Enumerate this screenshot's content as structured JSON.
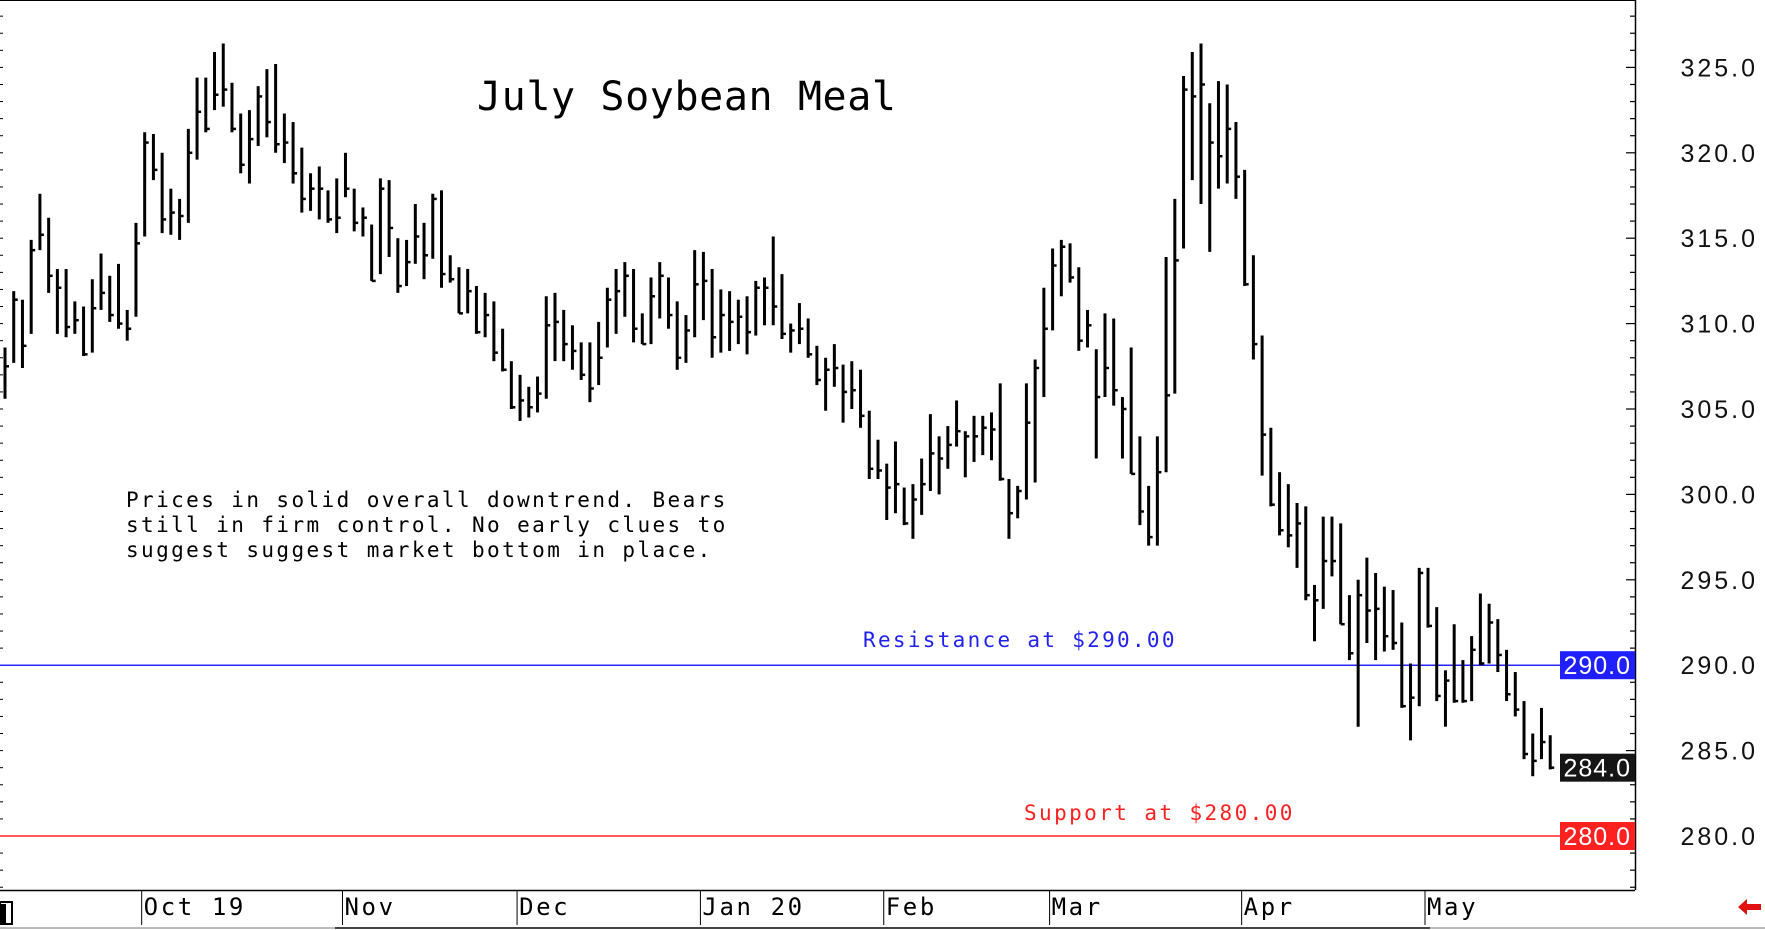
{
  "chart_data": {
    "type": "bar",
    "style": "high-low-close price bars",
    "title": "July Soybean Meal",
    "annotation": [
      "Prices in solid overall downtrend. Bears",
      "still in firm control. No early clues to",
      "suggest suggest market bottom in place."
    ],
    "y_axis": {
      "position": "right",
      "ylim": [
        276.8,
        329.0
      ],
      "ticks": [
        "325.0",
        "320.0",
        "315.0",
        "310.0",
        "305.0",
        "300.0",
        "295.0",
        "290.0",
        "285.0",
        "280.0"
      ],
      "tick_values": [
        325,
        320,
        315,
        310,
        305,
        300,
        295,
        290,
        285,
        280
      ]
    },
    "x_axis": {
      "months": [
        {
          "label": "Oct 19",
          "start_bar": 17
        },
        {
          "label": "Nov",
          "start_bar": 40
        },
        {
          "label": "Dec",
          "start_bar": 60
        },
        {
          "label": "Jan 20",
          "start_bar": 81
        },
        {
          "label": "Feb",
          "start_bar": 102
        },
        {
          "label": "Mar",
          "start_bar": 121
        },
        {
          "label": "Apr",
          "start_bar": 143
        },
        {
          "label": "May",
          "start_bar": 164
        }
      ]
    },
    "reference_lines": [
      {
        "label": "Resistance at $290.00",
        "value": 290,
        "badge": "290.0",
        "color": "#2424ff"
      },
      {
        "label": "Support at $280.00",
        "value": 280,
        "badge": "280.0",
        "color": "#ff2020"
      }
    ],
    "last_price": {
      "value": 284,
      "badge": "284.0",
      "color": "#111111"
    },
    "high": [
      308.6,
      311.9,
      311.4,
      314.9,
      317.6,
      316.2,
      313.2,
      313.2,
      311.3,
      311.0,
      312.6,
      314.1,
      312.8,
      313.5,
      310.8,
      315.9,
      321.2,
      321.1,
      320.0,
      317.9,
      317.3,
      321.4,
      324.4,
      324.4,
      325.9,
      326.4,
      324.1,
      322.3,
      322.5,
      323.9,
      324.9,
      325.2,
      322.3,
      321.8,
      320.3,
      318.8,
      319.2,
      317.8,
      318.5,
      320.0,
      317.9,
      316.8,
      315.8,
      318.5,
      318.4,
      315.0,
      314.9,
      317.0,
      315.9,
      317.6,
      317.8,
      314.0,
      313.3,
      313.2,
      312.2,
      311.8,
      311.3,
      309.7,
      307.8,
      307.0,
      306.3,
      306.9,
      311.6,
      311.8,
      310.8,
      309.9,
      308.9,
      308.9,
      310.1,
      312.1,
      313.2,
      313.6,
      313.2,
      310.6,
      312.7,
      313.6,
      312.7,
      311.3,
      310.5,
      314.3,
      314.2,
      313.2,
      312.0,
      311.9,
      311.4,
      311.6,
      312.5,
      312.7,
      315.1,
      312.9,
      310.0,
      311.2,
      310.3,
      308.7,
      308.0,
      308.8,
      307.6,
      307.8,
      307.3,
      304.9,
      303.2,
      301.8,
      303.1,
      300.4,
      300.6,
      302.1,
      304.7,
      303.4,
      304.0,
      305.5,
      303.7,
      304.6,
      304.6,
      304.8,
      306.5,
      300.9,
      300.5,
      306.5,
      307.9,
      312.1,
      314.4,
      314.9,
      314.7,
      313.3,
      310.8,
      308.5,
      310.6,
      310.3,
      305.7,
      308.6,
      303.4,
      300.5,
      303.4,
      313.9,
      317.3,
      324.5,
      325.9,
      326.4,
      322.9,
      324.2,
      324.0,
      321.8,
      319.0,
      314.0,
      309.3,
      303.9,
      301.3,
      300.6,
      299.5,
      299.3,
      294.7,
      298.7,
      298.7,
      298.3,
      294.1,
      295.0,
      296.3,
      295.4,
      294.6,
      294.4,
      292.5,
      290.1,
      295.7,
      295.7,
      293.4,
      289.7,
      292.4,
      290.3,
      291.7,
      294.2,
      293.6,
      292.7,
      290.9,
      289.6,
      287.9,
      286.0,
      287.5,
      285.9
    ],
    "low": [
      305.6,
      307.7,
      307.4,
      309.4,
      314.3,
      311.8,
      309.4,
      309.2,
      309.4,
      308.1,
      308.3,
      310.8,
      310.1,
      309.7,
      309.0,
      310.4,
      315.1,
      318.4,
      315.3,
      315.2,
      314.9,
      315.9,
      319.6,
      321.2,
      322.5,
      322.7,
      321.2,
      318.8,
      318.2,
      320.4,
      320.9,
      320.0,
      319.4,
      318.2,
      316.5,
      316.6,
      316.1,
      315.9,
      315.3,
      317.4,
      315.4,
      315.1,
      312.5,
      312.9,
      313.9,
      311.8,
      312.2,
      313.5,
      312.6,
      313.8,
      312.1,
      312.4,
      310.6,
      310.6,
      309.4,
      309.2,
      307.8,
      307.2,
      305.0,
      304.3,
      304.5,
      304.8,
      305.6,
      307.8,
      307.8,
      307.3,
      306.7,
      305.4,
      306.4,
      308.6,
      309.4,
      310.4,
      308.9,
      308.8,
      308.8,
      310.3,
      309.7,
      307.3,
      307.7,
      309.2,
      310.2,
      308.0,
      308.3,
      308.4,
      308.8,
      308.2,
      309.3,
      309.9,
      309.9,
      309.1,
      308.3,
      308.8,
      308.0,
      306.4,
      304.9,
      306.3,
      304.2,
      305.0,
      303.9,
      300.9,
      300.9,
      298.5,
      298.9,
      298.2,
      297.4,
      298.8,
      300.2,
      300.0,
      301.5,
      302.8,
      301.0,
      301.9,
      302.3,
      302.0,
      300.8,
      297.4,
      298.6,
      299.7,
      300.7,
      305.7,
      309.6,
      311.6,
      312.4,
      308.4,
      308.6,
      302.1,
      305.7,
      305.2,
      302.1,
      301.2,
      298.2,
      297.0,
      297.0,
      301.3,
      305.9,
      314.4,
      318.4,
      317.0,
      314.2,
      317.9,
      318.2,
      317.3,
      312.2,
      307.9,
      301.1,
      299.3,
      297.6,
      296.9,
      295.7,
      293.8,
      291.4,
      293.3,
      295.2,
      292.4,
      290.3,
      286.4,
      291.3,
      290.3,
      290.8,
      290.9,
      287.5,
      285.6,
      287.6,
      292.2,
      287.9,
      286.4,
      287.8,
      287.8,
      287.9,
      290.0,
      290.1,
      289.6,
      287.9,
      287.0,
      284.5,
      283.5,
      284.5,
      283.9
    ],
    "close": [
      307.5,
      311.4,
      308.7,
      314.3,
      315.2,
      312.8,
      312.1,
      309.8,
      310.2,
      308.2,
      310.9,
      311.8,
      310.5,
      310.0,
      309.7,
      314.7,
      320.6,
      319.0,
      316.1,
      316.5,
      316.3,
      320.0,
      322.4,
      321.4,
      323.4,
      323.7,
      321.4,
      319.3,
      320.8,
      323.3,
      321.8,
      320.5,
      320.6,
      318.8,
      317.3,
      317.9,
      317.9,
      316.1,
      316.2,
      317.9,
      315.9,
      316.2,
      312.5,
      317.9,
      315.6,
      312.2,
      313.6,
      315.1,
      314.0,
      317.3,
      312.9,
      312.6,
      310.6,
      311.9,
      309.5,
      310.5,
      308.3,
      307.3,
      305.1,
      305.5,
      305.1,
      305.9,
      309.9,
      310.1,
      308.8,
      308.4,
      307.0,
      306.2,
      308.0,
      311.4,
      311.9,
      312.8,
      309.7,
      308.8,
      311.6,
      312.8,
      310.5,
      308.0,
      309.6,
      312.3,
      312.5,
      309.2,
      310.5,
      310.1,
      310.4,
      309.5,
      312.1,
      312.1,
      311.0,
      309.4,
      309.6,
      309.7,
      308.2,
      306.7,
      307.3,
      307.4,
      306.0,
      306.1,
      304.6,
      301.5,
      301.4,
      300.4,
      300.6,
      298.3,
      299.7,
      300.6,
      302.4,
      302.1,
      302.9,
      303.7,
      303.4,
      303.4,
      303.9,
      303.8,
      300.9,
      298.9,
      300.2,
      304.2,
      307.4,
      309.7,
      313.4,
      314.5,
      312.7,
      309.0,
      309.9,
      305.7,
      307.4,
      306.1,
      305.0,
      301.2,
      299.0,
      297.5,
      301.3,
      305.8,
      313.7,
      323.7,
      323.3,
      324.0,
      320.6,
      319.8,
      321.4,
      318.6,
      312.3,
      308.8,
      303.5,
      299.4,
      297.9,
      297.6,
      298.3,
      294.1,
      293.8,
      296.1,
      296.1,
      292.4,
      290.7,
      294.1,
      293.2,
      293.3,
      291.7,
      291.3,
      287.6,
      288.1,
      295.4,
      292.3,
      288.2,
      289.1,
      287.9,
      287.9,
      290.9,
      290.1,
      292.5,
      290.6,
      288.3,
      287.4,
      284.8,
      284.4,
      285.5,
      284.0
    ],
    "grid": false,
    "bar_color": "#000000"
  },
  "icons": {
    "scroll_arrow": "red-left-arrow-icon",
    "scroll_handle": "scrollbar-handle"
  }
}
